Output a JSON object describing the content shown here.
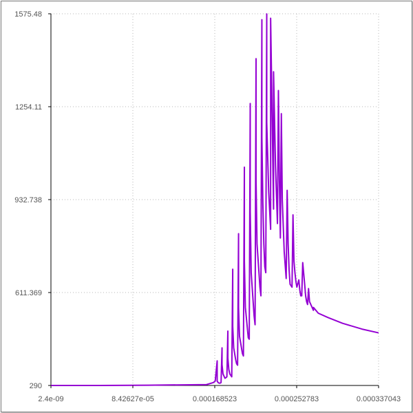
{
  "chart_data": {
    "type": "line",
    "title": "",
    "xlabel": "",
    "ylabel": "",
    "xlim": [
      2.4e-09,
      0.000337043
    ],
    "ylim": [
      290,
      1575.48
    ],
    "x_ticks": [
      "2.4e-09",
      "8.42627e-05",
      "0.000168523",
      "0.000252783",
      "0.000337043"
    ],
    "y_ticks": [
      "290",
      "611.369",
      "932.738",
      "1254.11",
      "1575.48"
    ],
    "grid": true,
    "series": [
      {
        "color": "#9400d3",
        "x": [
          2.4e-09,
          5e-05,
          0.0001,
          0.00016,
          0.000167,
          0.000169,
          0.000171,
          0.000171,
          0.000172,
          0.000173,
          0.000174,
          0.000175,
          0.000176,
          0.000176,
          0.000177,
          0.000179,
          0.00018,
          0.000181,
          0.000182,
          0.000182,
          0.000183,
          0.000184,
          0.000185,
          0.000186,
          0.000187,
          0.000187,
          0.000188,
          0.00019,
          0.000191,
          0.000192,
          0.000193,
          0.000193,
          0.000194,
          0.000196,
          0.000197,
          0.000198,
          0.000199,
          0.000199,
          0.0002,
          0.000202,
          0.000203,
          0.000204,
          0.000205,
          0.000205,
          0.000206,
          0.000208,
          0.000209,
          0.00021,
          0.000211,
          0.000211,
          0.000212,
          0.000214,
          0.000215,
          0.000216,
          0.000217,
          0.000217,
          0.000218,
          0.000219,
          0.00022,
          0.000221,
          0.000222,
          0.000222,
          0.000224,
          0.000226,
          0.000226,
          0.000228,
          0.000229,
          0.000229,
          0.000231,
          0.000233,
          0.000234,
          0.000235,
          0.000236,
          0.000237,
          0.000238,
          0.00024,
          0.000242,
          0.000243,
          0.000244,
          0.000245,
          0.000246,
          0.000248,
          0.000249,
          0.00025,
          0.000251,
          0.000252,
          0.000253,
          0.000255,
          0.000256,
          0.000257,
          0.000258,
          0.000259,
          0.000261,
          0.000262,
          0.000263,
          0.000264,
          0.000265,
          0.000266,
          0.000268,
          0.00027,
          0.00027,
          0.000275,
          0.000285,
          0.0003,
          0.00032,
          0.000337043
        ],
        "y": [
          290,
          290,
          291,
          293,
          300,
          305,
          375,
          305,
          300,
          298,
          298,
          300,
          420,
          362,
          330,
          315,
          317,
          320,
          478,
          385,
          345,
          330,
          325,
          320,
          692,
          495,
          420,
          380,
          365,
          360,
          815,
          560,
          460,
          420,
          400,
          392,
          1045,
          720,
          560,
          490,
          455,
          450,
          1265,
          890,
          680,
          580,
          530,
          500,
          1420,
          1000,
          780,
          680,
          630,
          600,
          1555,
          1150,
          920,
          780,
          700,
          680,
          1575,
          1200,
          960,
          830,
          1560,
          1120,
          900,
          1375,
          1050,
          850,
          1310,
          1000,
          800,
          1230,
          930,
          750,
          660,
          965,
          780,
          690,
          640,
          630,
          880,
          720,
          680,
          650,
          630,
          655,
          620,
          600,
          600,
          715,
          640,
          600,
          580,
          570,
          625,
          580,
          565,
          550,
          560,
          540,
          525,
          505,
          485,
          472
        ]
      }
    ]
  }
}
